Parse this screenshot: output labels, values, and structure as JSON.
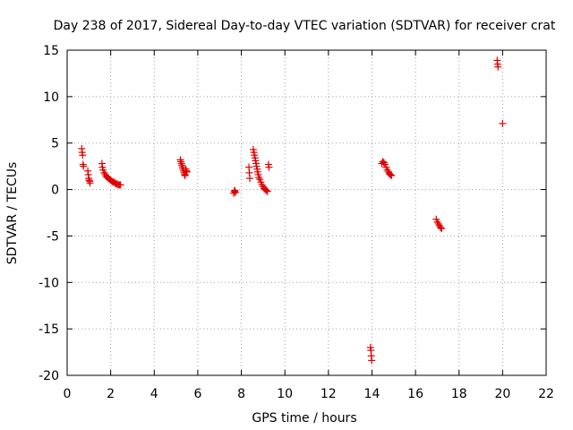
{
  "chart_data": {
    "type": "scatter",
    "title": "Day 238 of 2017, Sidereal Day-to-day VTEC variation (SDTVAR) for receiver crat",
    "xlabel": "GPS time / hours",
    "ylabel": "SDTVAR / TECUs",
    "xlim": [
      0,
      22
    ],
    "ylim": [
      -20,
      15
    ],
    "xticks": [
      "0",
      "2",
      "4",
      "6",
      "8",
      "10",
      "12",
      "14",
      "16",
      "18",
      "20",
      "22"
    ],
    "yticks": [
      "15",
      "10",
      "5",
      "0",
      "-5",
      "-10",
      "-15",
      "-20"
    ],
    "grid": true,
    "marker": "+",
    "marker_color": "#e00000",
    "series": [
      {
        "name": "SDTVAR",
        "points": [
          [
            0.67,
            4.4
          ],
          [
            0.69,
            4.0
          ],
          [
            0.71,
            3.7
          ],
          [
            0.73,
            2.7
          ],
          [
            0.75,
            2.5
          ],
          [
            0.95,
            2.0
          ],
          [
            0.97,
            1.6
          ],
          [
            0.99,
            1.2
          ],
          [
            1.01,
            1.0
          ],
          [
            1.03,
            0.9
          ],
          [
            1.05,
            0.7
          ],
          [
            1.6,
            2.8
          ],
          [
            1.62,
            2.4
          ],
          [
            1.65,
            2.1
          ],
          [
            1.7,
            1.8
          ],
          [
            1.75,
            1.6
          ],
          [
            1.8,
            1.4
          ],
          [
            1.85,
            1.3
          ],
          [
            1.9,
            1.2
          ],
          [
            1.95,
            1.1
          ],
          [
            2.0,
            1.0
          ],
          [
            2.05,
            0.9
          ],
          [
            2.1,
            0.8
          ],
          [
            2.15,
            0.8
          ],
          [
            2.2,
            0.7
          ],
          [
            2.25,
            0.6
          ],
          [
            2.3,
            0.6
          ],
          [
            2.35,
            0.5
          ],
          [
            2.4,
            0.5
          ],
          [
            2.45,
            0.5
          ],
          [
            5.2,
            3.2
          ],
          [
            5.22,
            3.0
          ],
          [
            5.25,
            2.8
          ],
          [
            5.27,
            2.6
          ],
          [
            5.3,
            2.4
          ],
          [
            5.32,
            2.2
          ],
          [
            5.35,
            2.0
          ],
          [
            5.37,
            1.8
          ],
          [
            5.4,
            1.6
          ],
          [
            5.42,
            1.5
          ],
          [
            5.45,
            2.2
          ],
          [
            5.48,
            2.0
          ],
          [
            5.5,
            1.9
          ],
          [
            7.65,
            -0.4
          ],
          [
            7.68,
            -0.2
          ],
          [
            7.7,
            -0.1
          ],
          [
            7.73,
            -0.3
          ],
          [
            8.35,
            2.4
          ],
          [
            8.37,
            1.8
          ],
          [
            8.39,
            1.2
          ],
          [
            8.55,
            4.3
          ],
          [
            8.58,
            4.0
          ],
          [
            8.6,
            3.7
          ],
          [
            8.63,
            3.4
          ],
          [
            8.65,
            3.1
          ],
          [
            8.68,
            2.8
          ],
          [
            8.7,
            2.5
          ],
          [
            8.73,
            2.2
          ],
          [
            8.75,
            1.9
          ],
          [
            8.78,
            1.6
          ],
          [
            8.8,
            1.3
          ],
          [
            8.85,
            1.1
          ],
          [
            8.9,
            0.8
          ],
          [
            8.95,
            0.5
          ],
          [
            9.0,
            0.3
          ],
          [
            9.05,
            0.1
          ],
          [
            9.1,
            0.0
          ],
          [
            9.15,
            -0.1
          ],
          [
            9.2,
            -0.2
          ],
          [
            9.25,
            2.7
          ],
          [
            9.27,
            2.4
          ],
          [
            13.93,
            -17.0
          ],
          [
            13.95,
            -17.3
          ],
          [
            13.97,
            -17.9
          ],
          [
            13.99,
            -18.4
          ],
          [
            14.45,
            2.8
          ],
          [
            14.5,
            3.0
          ],
          [
            14.55,
            2.9
          ],
          [
            14.6,
            2.7
          ],
          [
            14.65,
            2.4
          ],
          [
            14.7,
            2.1
          ],
          [
            14.75,
            1.9
          ],
          [
            14.8,
            1.7
          ],
          [
            14.85,
            1.6
          ],
          [
            14.9,
            1.5
          ],
          [
            16.95,
            -3.2
          ],
          [
            17.0,
            -3.5
          ],
          [
            17.05,
            -3.7
          ],
          [
            17.1,
            -3.9
          ],
          [
            17.15,
            -4.1
          ],
          [
            17.2,
            -4.2
          ],
          [
            19.75,
            13.9
          ],
          [
            19.77,
            13.5
          ],
          [
            19.79,
            13.2
          ],
          [
            20.0,
            7.1
          ]
        ]
      }
    ]
  }
}
